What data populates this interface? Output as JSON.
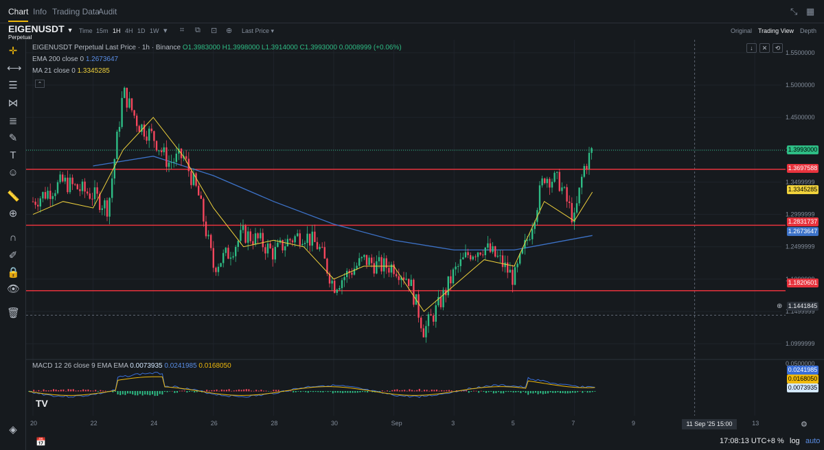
{
  "tabs": [
    "Chart",
    "Info",
    "Trading Data",
    "Audit"
  ],
  "symbol": {
    "name": "EIGENUSDT",
    "sub": "Perpetual"
  },
  "timeframes": [
    "Time",
    "15m",
    "1H",
    "4H",
    "1D",
    "1W"
  ],
  "active_timeframe": "1H",
  "price_type": "Last Price",
  "views": [
    "Original",
    "Trading View",
    "Depth"
  ],
  "active_view": "Trading View",
  "icons": {
    "window": [
      "collapse-icon",
      "grid-icon"
    ],
    "toolbar": [
      "chart-type-icon",
      "indicators-icon",
      "screenshot-icon",
      "add-icon",
      "dropdown-icon"
    ],
    "left_tools": [
      "crosshair-icon",
      "horizontal-line-icon",
      "parallel-lines-icon",
      "pattern-icon",
      "fib-icon",
      "brush-icon",
      "text-icon",
      "emoji-icon",
      "ruler-icon",
      "zoom-in-icon",
      "magnet-icon",
      "pencil-lock-icon",
      "lock-icon",
      "eye-icon",
      "trash-icon",
      "layers-icon"
    ],
    "chart_buttons": [
      "arrow-down-icon",
      "collapse-icon",
      "expand-icon"
    ]
  },
  "legend": {
    "title": "EIGENUSDT Perpetual Last Price · 1h · Binance",
    "ohlc": "O1.3983000 H1.3998000 L1.3914000 C1.3993000 0.0008999 (+0.06%)",
    "ema_label": "EMA 200 close 0",
    "ema_value": "1.2673647",
    "ma_label": "MA 21 close 0",
    "ma_value": "1.3345285",
    "macd_label": "MACD 12 26 close 9 EMA EMA",
    "macd_values": [
      "0.0073935",
      "0.0241985",
      "0.0168050"
    ]
  },
  "colors": {
    "up": "#2ebd85",
    "down": "#f6465d",
    "ema": "#3d73c9",
    "ma": "#f0d23c",
    "hline": "#e8333d",
    "macd_line": "#3a6fd8",
    "signal_line": "#f0b90b"
  },
  "chart_data": [
    {
      "type": "candlestick",
      "title": "EIGENUSDT Perpetual Last Price · 1h · Binance",
      "x_ticks": [
        "20",
        "22",
        "24",
        "26",
        "28",
        "30",
        "Sep",
        "3",
        "5",
        "7",
        "9",
        "11 Sep '25  15:00",
        "13"
      ],
      "y_ticks": [
        "1.5500000",
        "1.5000000",
        "1.4500000",
        "1.3999999",
        "1.3499999",
        "1.2999999",
        "1.2499999",
        "1.1999999",
        "1.1499999",
        "1.0999999"
      ],
      "ylim": [
        1.08,
        1.57
      ],
      "series": [
        {
          "name": "Price (close)",
          "x": [
            "Aug 20",
            "Aug 21",
            "Aug 22",
            "Aug 22.5",
            "Aug 23",
            "Aug 23.5",
            "Aug 24",
            "Aug 24.5",
            "Aug 25",
            "Aug 25.5",
            "Aug 26",
            "Aug 26.5",
            "Aug 27",
            "Aug 27.5",
            "Aug 28",
            "Aug 28.5",
            "Aug 29",
            "Aug 29.5",
            "Aug 30",
            "Aug 30.5",
            "Aug 31",
            "Aug 31.5",
            "Sep 1",
            "Sep 1.5",
            "Sep 2",
            "Sep 2.5",
            "Sep 3",
            "Sep 3.5",
            "Sep 4",
            "Sep 4.5",
            "Sep 5",
            "Sep 5.5",
            "Sep 6",
            "Sep 6.5",
            "Sep 7",
            "Sep 7.3",
            "Sep 7.6"
          ],
          "values": [
            1.32,
            1.35,
            1.33,
            1.31,
            1.49,
            1.44,
            1.42,
            1.38,
            1.39,
            1.33,
            1.22,
            1.24,
            1.27,
            1.26,
            1.24,
            1.26,
            1.27,
            1.25,
            1.19,
            1.21,
            1.23,
            1.22,
            1.22,
            1.2,
            1.12,
            1.16,
            1.21,
            1.24,
            1.25,
            1.23,
            1.2,
            1.27,
            1.36,
            1.35,
            1.29,
            1.37,
            1.3993
          ]
        },
        {
          "name": "EMA 200",
          "x": [
            "Aug 22",
            "Aug 24",
            "Aug 26",
            "Aug 28",
            "Aug 30",
            "Sep 1",
            "Sep 3",
            "Sep 5",
            "Sep 7.6"
          ],
          "values": [
            1.375,
            1.39,
            1.36,
            1.32,
            1.285,
            1.26,
            1.245,
            1.245,
            1.2674
          ]
        },
        {
          "name": "MA 21",
          "x": [
            "Aug 20",
            "Aug 21",
            "Aug 22",
            "Aug 23",
            "Aug 24",
            "Aug 25",
            "Aug 26",
            "Aug 27",
            "Aug 28",
            "Aug 29",
            "Aug 30",
            "Aug 31",
            "Sep 1",
            "Sep 2",
            "Sep 3",
            "Sep 4",
            "Sep 5",
            "Sep 6",
            "Sep 7",
            "Sep 7.6"
          ],
          "values": [
            1.3,
            1.32,
            1.31,
            1.4,
            1.45,
            1.39,
            1.31,
            1.25,
            1.26,
            1.25,
            1.2,
            1.22,
            1.22,
            1.15,
            1.19,
            1.23,
            1.22,
            1.32,
            1.29,
            1.3345
          ]
        }
      ],
      "horizontal_lines": [
        1.3697588,
        1.2831737,
        1.1820601
      ],
      "dashed_level": 1.1441845,
      "last_price": 1.3993,
      "price_labels": [
        "1.3993000",
        "1.3697588",
        "1.3345285",
        "1.2831737",
        "1.2673647",
        "1.1820601",
        "1.1441845"
      ]
    },
    {
      "type": "macd",
      "title": "MACD 12 26 close 9 EMA EMA",
      "y_ticks": [
        "0.0500000"
      ],
      "macd_value": 0.0073935,
      "signal_values_labels": [
        "0.0241985",
        "0.0168050",
        "0.0073935"
      ]
    }
  ],
  "timebar": {
    "time": "17:08:13 UTC+8",
    "percent": "%",
    "log": "log",
    "auto": "auto"
  }
}
